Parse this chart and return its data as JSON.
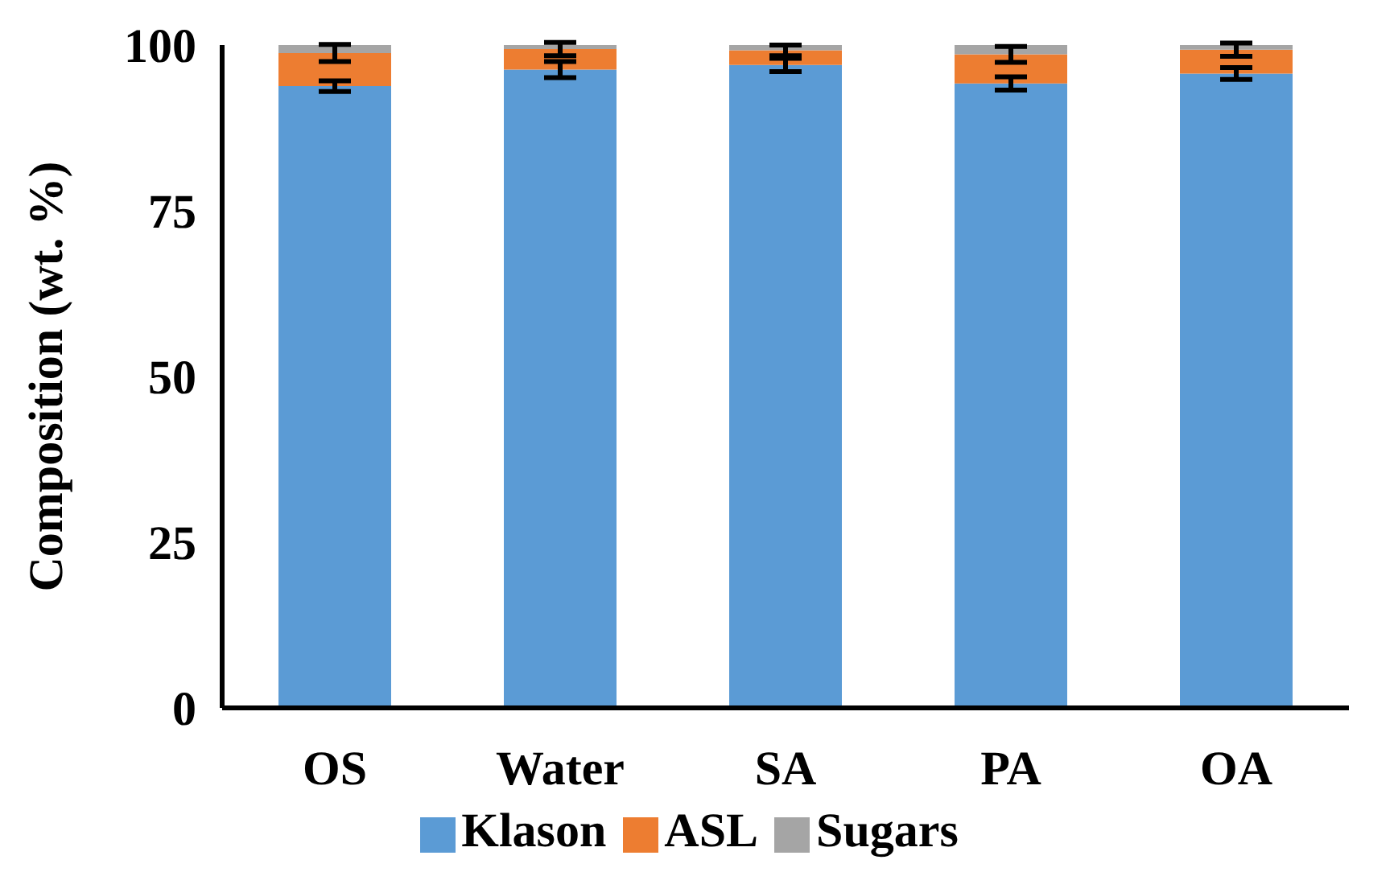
{
  "chart_data": {
    "type": "bar",
    "stacked": true,
    "ylabel": "Composition (wt. %)",
    "categories": [
      "OS",
      "Water",
      "SA",
      "PA",
      "OA"
    ],
    "series": [
      {
        "name": "Klason",
        "color": "#5b9bd5",
        "values": [
          93.8,
          96.3,
          97.0,
          94.2,
          95.7
        ],
        "errors": [
          0.8,
          1.2,
          1.0,
          1.0,
          0.9
        ]
      },
      {
        "name": "ASL",
        "color": "#ed7d31",
        "values": [
          5.0,
          3.1,
          2.2,
          4.4,
          3.6
        ],
        "errors": [
          1.3,
          1.0,
          0.8,
          1.2,
          1.0
        ]
      },
      {
        "name": "Sugars",
        "color": "#a5a5a5",
        "values": [
          1.2,
          0.6,
          0.8,
          1.4,
          0.7
        ]
      }
    ],
    "ylim": [
      0,
      100
    ],
    "yticks": [
      0,
      25,
      50,
      75,
      100
    ],
    "grid": false,
    "legend": "bottom"
  }
}
